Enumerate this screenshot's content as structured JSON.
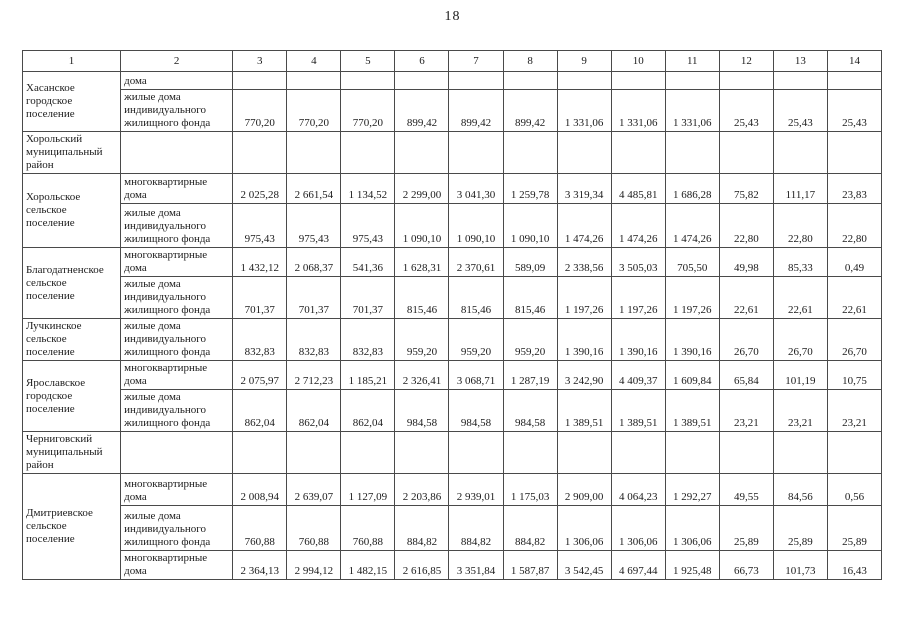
{
  "page": {
    "number": "18"
  },
  "table": {
    "header": [
      "1",
      "2",
      "3",
      "4",
      "5",
      "6",
      "7",
      "8",
      "9",
      "10",
      "11",
      "12",
      "13",
      "14"
    ],
    "rows": [
      {
        "cells": [
          {
            "t": "Хасанское городское поселение",
            "k": "territory",
            "rs": 2
          },
          {
            "t": "дома",
            "k": "housing-type"
          },
          {
            "k": "value"
          },
          {
            "k": "value"
          },
          {
            "k": "value"
          },
          {
            "k": "value"
          },
          {
            "k": "value"
          },
          {
            "k": "value"
          },
          {
            "k": "value"
          },
          {
            "k": "value"
          },
          {
            "k": "value"
          },
          {
            "k": "value"
          },
          {
            "k": "value"
          },
          {
            "k": "value"
          }
        ]
      },
      {
        "cells": [
          {
            "t": "жилые дома индивидуального жилищного фонда",
            "k": "housing-type"
          },
          {
            "t": "770,20",
            "k": "value"
          },
          {
            "t": "770,20",
            "k": "value"
          },
          {
            "t": "770,20",
            "k": "value"
          },
          {
            "t": "899,42",
            "k": "value"
          },
          {
            "t": "899,42",
            "k": "value"
          },
          {
            "t": "899,42",
            "k": "value"
          },
          {
            "t": "1 331,06",
            "k": "value"
          },
          {
            "t": "1 331,06",
            "k": "value"
          },
          {
            "t": "1 331,06",
            "k": "value"
          },
          {
            "t": "25,43",
            "k": "value"
          },
          {
            "t": "25,43",
            "k": "value"
          },
          {
            "t": "25,43",
            "k": "value"
          }
        ]
      },
      {
        "cells": [
          {
            "t": "Хорольский муниципальный район",
            "k": "territory"
          },
          {
            "k": "housing-type"
          },
          {
            "k": "value"
          },
          {
            "k": "value"
          },
          {
            "k": "value"
          },
          {
            "k": "value"
          },
          {
            "k": "value"
          },
          {
            "k": "value"
          },
          {
            "k": "value"
          },
          {
            "k": "value"
          },
          {
            "k": "value"
          },
          {
            "k": "value"
          },
          {
            "k": "value"
          },
          {
            "k": "value"
          }
        ]
      },
      {
        "cells": [
          {
            "t": "Хорольское сельское поселение",
            "k": "territory",
            "rs": 2
          },
          {
            "t": "многоквартирные дома",
            "k": "housing-type"
          },
          {
            "t": "2 025,28",
            "k": "value"
          },
          {
            "t": "2 661,54",
            "k": "value"
          },
          {
            "t": "1 134,52",
            "k": "value"
          },
          {
            "t": "2 299,00",
            "k": "value"
          },
          {
            "t": "3 041,30",
            "k": "value"
          },
          {
            "t": "1 259,78",
            "k": "value"
          },
          {
            "t": "3 319,34",
            "k": "value"
          },
          {
            "t": "4 485,81",
            "k": "value"
          },
          {
            "t": "1 686,28",
            "k": "value"
          },
          {
            "t": "75,82",
            "k": "value"
          },
          {
            "t": "111,17",
            "k": "value"
          },
          {
            "t": "23,83",
            "k": "value"
          }
        ]
      },
      {
        "cells": [
          {
            "t": "жилые дома индивидуального жилищного фонда",
            "k": "housing-type"
          },
          {
            "t": "975,43",
            "k": "value"
          },
          {
            "t": "975,43",
            "k": "value"
          },
          {
            "t": "975,43",
            "k": "value"
          },
          {
            "t": "1 090,10",
            "k": "value"
          },
          {
            "t": "1 090,10",
            "k": "value"
          },
          {
            "t": "1 090,10",
            "k": "value"
          },
          {
            "t": "1 474,26",
            "k": "value"
          },
          {
            "t": "1 474,26",
            "k": "value"
          },
          {
            "t": "1 474,26",
            "k": "value"
          },
          {
            "t": "22,80",
            "k": "value"
          },
          {
            "t": "22,80",
            "k": "value"
          },
          {
            "t": "22,80",
            "k": "value"
          }
        ]
      },
      {
        "cells": [
          {
            "t": "Благодатненское сельское поселение",
            "k": "territory",
            "rs": 2
          },
          {
            "t": "многоквартирные дома",
            "k": "housing-type"
          },
          {
            "t": "1 432,12",
            "k": "value"
          },
          {
            "t": "2 068,37",
            "k": "value"
          },
          {
            "t": "541,36",
            "k": "value"
          },
          {
            "t": "1 628,31",
            "k": "value"
          },
          {
            "t": "2 370,61",
            "k": "value"
          },
          {
            "t": "589,09",
            "k": "value"
          },
          {
            "t": "2 338,56",
            "k": "value"
          },
          {
            "t": "3 505,03",
            "k": "value"
          },
          {
            "t": "705,50",
            "k": "value"
          },
          {
            "t": "49,98",
            "k": "value"
          },
          {
            "t": "85,33",
            "k": "value"
          },
          {
            "t": "0,49",
            "k": "value"
          }
        ]
      },
      {
        "cells": [
          {
            "t": "жилые дома индивидуального жилищного фонда",
            "k": "housing-type"
          },
          {
            "t": "701,37",
            "k": "value"
          },
          {
            "t": "701,37",
            "k": "value"
          },
          {
            "t": "701,37",
            "k": "value"
          },
          {
            "t": "815,46",
            "k": "value"
          },
          {
            "t": "815,46",
            "k": "value"
          },
          {
            "t": "815,46",
            "k": "value"
          },
          {
            "t": "1 197,26",
            "k": "value"
          },
          {
            "t": "1 197,26",
            "k": "value"
          },
          {
            "t": "1 197,26",
            "k": "value"
          },
          {
            "t": "22,61",
            "k": "value"
          },
          {
            "t": "22,61",
            "k": "value"
          },
          {
            "t": "22,61",
            "k": "value"
          }
        ]
      },
      {
        "cells": [
          {
            "t": "Лучкинское сельское поселение",
            "k": "territory"
          },
          {
            "t": "жилые дома индивидуального жилищного фонда",
            "k": "housing-type"
          },
          {
            "t": "832,83",
            "k": "value"
          },
          {
            "t": "832,83",
            "k": "value"
          },
          {
            "t": "832,83",
            "k": "value"
          },
          {
            "t": "959,20",
            "k": "value"
          },
          {
            "t": "959,20",
            "k": "value"
          },
          {
            "t": "959,20",
            "k": "value"
          },
          {
            "t": "1 390,16",
            "k": "value"
          },
          {
            "t": "1 390,16",
            "k": "value"
          },
          {
            "t": "1 390,16",
            "k": "value"
          },
          {
            "t": "26,70",
            "k": "value"
          },
          {
            "t": "26,70",
            "k": "value"
          },
          {
            "t": "26,70",
            "k": "value"
          }
        ]
      },
      {
        "cells": [
          {
            "t": "Ярославское городское поселение",
            "k": "territory",
            "rs": 2
          },
          {
            "t": "многоквартирные дома",
            "k": "housing-type"
          },
          {
            "t": "2 075,97",
            "k": "value"
          },
          {
            "t": "2 712,23",
            "k": "value"
          },
          {
            "t": "1 185,21",
            "k": "value"
          },
          {
            "t": "2 326,41",
            "k": "value"
          },
          {
            "t": "3 068,71",
            "k": "value"
          },
          {
            "t": "1 287,19",
            "k": "value"
          },
          {
            "t": "3 242,90",
            "k": "value"
          },
          {
            "t": "4 409,37",
            "k": "value"
          },
          {
            "t": "1 609,84",
            "k": "value"
          },
          {
            "t": "65,84",
            "k": "value"
          },
          {
            "t": "101,19",
            "k": "value"
          },
          {
            "t": "10,75",
            "k": "value"
          }
        ]
      },
      {
        "cells": [
          {
            "t": "жилые дома индивидуального жилищного фонда",
            "k": "housing-type"
          },
          {
            "t": "862,04",
            "k": "value"
          },
          {
            "t": "862,04",
            "k": "value"
          },
          {
            "t": "862,04",
            "k": "value"
          },
          {
            "t": "984,58",
            "k": "value"
          },
          {
            "t": "984,58",
            "k": "value"
          },
          {
            "t": "984,58",
            "k": "value"
          },
          {
            "t": "1 389,51",
            "k": "value"
          },
          {
            "t": "1 389,51",
            "k": "value"
          },
          {
            "t": "1 389,51",
            "k": "value"
          },
          {
            "t": "23,21",
            "k": "value"
          },
          {
            "t": "23,21",
            "k": "value"
          },
          {
            "t": "23,21",
            "k": "value"
          }
        ]
      },
      {
        "cells": [
          {
            "t": "Черниговский муниципальный район",
            "k": "territory"
          },
          {
            "k": "housing-type"
          },
          {
            "k": "value"
          },
          {
            "k": "value"
          },
          {
            "k": "value"
          },
          {
            "k": "value"
          },
          {
            "k": "value"
          },
          {
            "k": "value"
          },
          {
            "k": "value"
          },
          {
            "k": "value"
          },
          {
            "k": "value"
          },
          {
            "k": "value"
          },
          {
            "k": "value"
          },
          {
            "k": "value"
          }
        ]
      },
      {
        "cells": [
          {
            "t": "Дмитриевское сельское поселение",
            "k": "territory",
            "rs": 3
          },
          {
            "t": "многоквартирные дома",
            "k": "housing-type"
          },
          {
            "t": "2 008,94",
            "k": "value"
          },
          {
            "t": "2 639,07",
            "k": "value"
          },
          {
            "t": "1 127,09",
            "k": "value"
          },
          {
            "t": "2 203,86",
            "k": "value"
          },
          {
            "t": "2 939,01",
            "k": "value"
          },
          {
            "t": "1 175,03",
            "k": "value"
          },
          {
            "t": "2 909,00",
            "k": "value"
          },
          {
            "t": "4 064,23",
            "k": "value"
          },
          {
            "t": "1 292,27",
            "k": "value"
          },
          {
            "t": "49,55",
            "k": "value"
          },
          {
            "t": "84,56",
            "k": "value"
          },
          {
            "t": "0,56",
            "k": "value"
          }
        ]
      },
      {
        "cells": [
          {
            "t": "жилые дома индивидуального жилищного фонда",
            "k": "housing-type"
          },
          {
            "t": "760,88",
            "k": "value"
          },
          {
            "t": "760,88",
            "k": "value"
          },
          {
            "t": "760,88",
            "k": "value"
          },
          {
            "t": "884,82",
            "k": "value"
          },
          {
            "t": "884,82",
            "k": "value"
          },
          {
            "t": "884,82",
            "k": "value"
          },
          {
            "t": "1 306,06",
            "k": "value"
          },
          {
            "t": "1 306,06",
            "k": "value"
          },
          {
            "t": "1 306,06",
            "k": "value"
          },
          {
            "t": "25,89",
            "k": "value"
          },
          {
            "t": "25,89",
            "k": "value"
          },
          {
            "t": "25,89",
            "k": "value"
          }
        ]
      },
      {
        "cells": [
          {
            "t": "многоквартирные дома",
            "k": "housing-type"
          },
          {
            "t": "2 364,13",
            "k": "value"
          },
          {
            "t": "2 994,12",
            "k": "value"
          },
          {
            "t": "1 482,15",
            "k": "value"
          },
          {
            "t": "2 616,85",
            "k": "value"
          },
          {
            "t": "3 351,84",
            "k": "value"
          },
          {
            "t": "1 587,87",
            "k": "value"
          },
          {
            "t": "3 542,45",
            "k": "value"
          },
          {
            "t": "4 697,44",
            "k": "value"
          },
          {
            "t": "1 925,48",
            "k": "value"
          },
          {
            "t": "66,73",
            "k": "value"
          },
          {
            "t": "101,73",
            "k": "value"
          },
          {
            "t": "16,43",
            "k": "value"
          }
        ]
      }
    ]
  }
}
